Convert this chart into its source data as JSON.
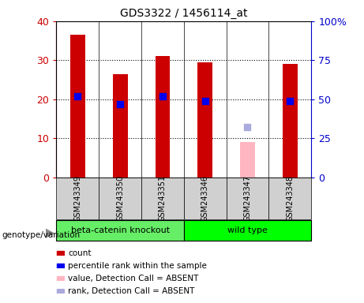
{
  "title": "GDS3322 / 1456114_at",
  "samples": [
    "GSM243349",
    "GSM243350",
    "GSM243351",
    "GSM243346",
    "GSM243347",
    "GSM243348"
  ],
  "count_values": [
    36.5,
    26.5,
    31.0,
    29.5,
    null,
    29.0
  ],
  "count_absent": [
    null,
    null,
    null,
    null,
    9.0,
    null
  ],
  "percentile_values": [
    52.0,
    47.0,
    52.0,
    49.0,
    null,
    49.0
  ],
  "percentile_absent": [
    null,
    null,
    null,
    null,
    32.0,
    null
  ],
  "groups": [
    {
      "label": "beta-catenin knockout",
      "samples": [
        0,
        1,
        2
      ],
      "color": "#66EE66"
    },
    {
      "label": "wild type",
      "samples": [
        3,
        4,
        5
      ],
      "color": "#00FF00"
    }
  ],
  "left_ylim": [
    0,
    40
  ],
  "right_ylim": [
    0,
    100
  ],
  "left_yticks": [
    0,
    10,
    20,
    30,
    40
  ],
  "right_yticks": [
    0,
    25,
    50,
    75,
    100
  ],
  "right_yticklabels": [
    "0",
    "25",
    "50",
    "75",
    "100%"
  ],
  "left_color": "#CC0000",
  "right_color": "#0000CC",
  "bar_color_normal": "#CC0000",
  "bar_color_absent": "#FFB6C1",
  "dot_color_normal": "#0000EE",
  "dot_color_absent": "#AAAADD",
  "bg_color": "#D0D0D0",
  "grid_color": "black",
  "bar_width": 0.35,
  "dot_size": 40,
  "legend_items": [
    {
      "color": "#CC0000",
      "label": "count"
    },
    {
      "color": "#0000EE",
      "label": "percentile rank within the sample"
    },
    {
      "color": "#FFB6C1",
      "label": "value, Detection Call = ABSENT"
    },
    {
      "color": "#AAAADD",
      "label": "rank, Detection Call = ABSENT"
    }
  ]
}
